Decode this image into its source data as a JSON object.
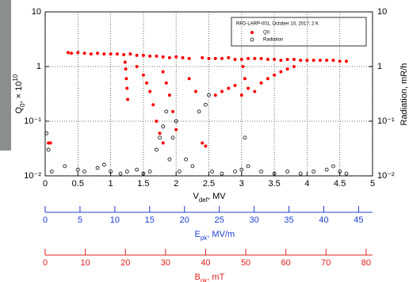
{
  "chart_data": {
    "type": "scatter",
    "legend_title": "RFD-LARP-001, October 10, 2017; 2 K",
    "xlabel": [
      "V",
      "def",
      ", MV"
    ],
    "ylabel": [
      "Q",
      "0",
      ", × 10",
      "10"
    ],
    "y2label": "Radiation, mR/h",
    "xlim": [
      0,
      5
    ],
    "xticks": [
      0,
      0.5,
      1,
      1.5,
      2,
      2.5,
      3,
      3.5,
      4,
      4.5,
      5
    ],
    "ylim": [
      0.01,
      10
    ],
    "yticks": [
      {
        "value": 0.01,
        "label": "10⁻²"
      },
      {
        "value": 0.1,
        "label": "10⁻¹"
      },
      1,
      10
    ],
    "y2lim": [
      0.01,
      10
    ],
    "y2ticks": [
      {
        "value": 0.01,
        "label": "10⁻²"
      },
      {
        "value": 0.1,
        "label": "10⁻¹"
      },
      1,
      10
    ],
    "log_y": true,
    "grid": true,
    "legend": "upper right",
    "series": [
      {
        "name": "Q0",
        "color": "#ff0000",
        "marker": "filled",
        "x": [
          0.05,
          0.08,
          0.35,
          0.4,
          0.5,
          0.6,
          0.7,
          0.8,
          0.9,
          1.0,
          1.1,
          1.2,
          1.3,
          1.4,
          1.5,
          1.6,
          1.7,
          1.8,
          1.9,
          2.0,
          2.1,
          2.2,
          2.4,
          2.5,
          2.6,
          2.7,
          2.8,
          2.9,
          3.0,
          3.1,
          3.2,
          3.3,
          3.4,
          3.5,
          3.6,
          3.7,
          3.8,
          3.9,
          4.0,
          4.1,
          4.2,
          4.3,
          4.4,
          4.5,
          4.6,
          1.22,
          1.23,
          1.24,
          1.25,
          1.26,
          1.4,
          1.5,
          1.55,
          1.6,
          1.65,
          1.7,
          1.75,
          1.8,
          1.8,
          1.85,
          1.9,
          1.95,
          2.0,
          2.2,
          2.3,
          2.4,
          2.45,
          2.6,
          2.7,
          2.8,
          2.9,
          3.0,
          3.02,
          3.05,
          3.1,
          3.2,
          3.3,
          3.4,
          3.5,
          3.6,
          3.7,
          3.8
        ],
        "values": [
          0.04,
          0.04,
          1.8,
          1.75,
          1.8,
          1.75,
          1.7,
          1.75,
          1.7,
          1.7,
          1.7,
          1.65,
          1.7,
          1.6,
          1.6,
          1.55,
          1.55,
          1.5,
          1.45,
          1.5,
          1.45,
          1.4,
          1.45,
          1.4,
          1.4,
          1.4,
          1.45,
          1.35,
          1.35,
          1.4,
          1.4,
          1.4,
          1.35,
          1.35,
          1.3,
          1.35,
          1.35,
          1.3,
          1.3,
          1.3,
          1.3,
          1.3,
          1.3,
          1.25,
          1.25,
          1.2,
          0.9,
          0.6,
          0.4,
          0.25,
          1.0,
          0.7,
          0.5,
          0.35,
          0.2,
          0.1,
          0.06,
          0.04,
          0.8,
          0.5,
          0.3,
          0.15,
          0.07,
          0.6,
          0.35,
          0.04,
          0.035,
          0.3,
          0.35,
          0.4,
          0.45,
          0.3,
          1.0,
          0.6,
          0.4,
          0.35,
          0.5,
          0.6,
          0.7,
          0.8,
          0.9,
          1.0
        ]
      },
      {
        "name": "Radiation",
        "color": "#000000",
        "marker": "open",
        "axis": "y2",
        "x": [
          0.02,
          0.05,
          0.1,
          0.3,
          0.5,
          0.6,
          0.8,
          0.9,
          1.0,
          1.15,
          1.25,
          1.4,
          1.5,
          1.6,
          1.7,
          1.75,
          1.8,
          1.85,
          1.9,
          1.95,
          2.0,
          2.05,
          2.15,
          2.25,
          2.35,
          2.45,
          2.5,
          2.55,
          2.7,
          2.9,
          3.0,
          3.05,
          3.1,
          3.3,
          3.5,
          3.7,
          3.9,
          4.1,
          4.3,
          4.4,
          4.5,
          4.6
        ],
        "values": [
          0.06,
          0.03,
          0.012,
          0.015,
          0.013,
          0.012,
          0.014,
          0.016,
          0.012,
          0.011,
          0.012,
          0.013,
          0.011,
          0.012,
          0.03,
          0.05,
          0.08,
          0.15,
          0.02,
          0.05,
          0.1,
          0.012,
          0.02,
          0.015,
          0.15,
          0.2,
          0.3,
          0.012,
          0.011,
          0.012,
          0.013,
          0.05,
          0.015,
          0.012,
          0.011,
          0.012,
          0.011,
          0.012,
          0.013,
          0.015,
          0.012,
          0.011
        ]
      }
    ],
    "epk_axis": {
      "label": [
        "E",
        "pk",
        ", MV/m"
      ],
      "color": "#1f3fd0",
      "lim": [
        0,
        47
      ],
      "ticks": [
        0,
        5,
        10,
        15,
        20,
        25,
        30,
        35,
        40,
        45
      ]
    },
    "bpk_axis": {
      "label": [
        "B",
        "pk",
        ", mT"
      ],
      "color": "#e0201c",
      "lim": [
        0,
        81.6
      ],
      "ticks": [
        0,
        10,
        20,
        30,
        40,
        50,
        60,
        70,
        80
      ]
    }
  }
}
